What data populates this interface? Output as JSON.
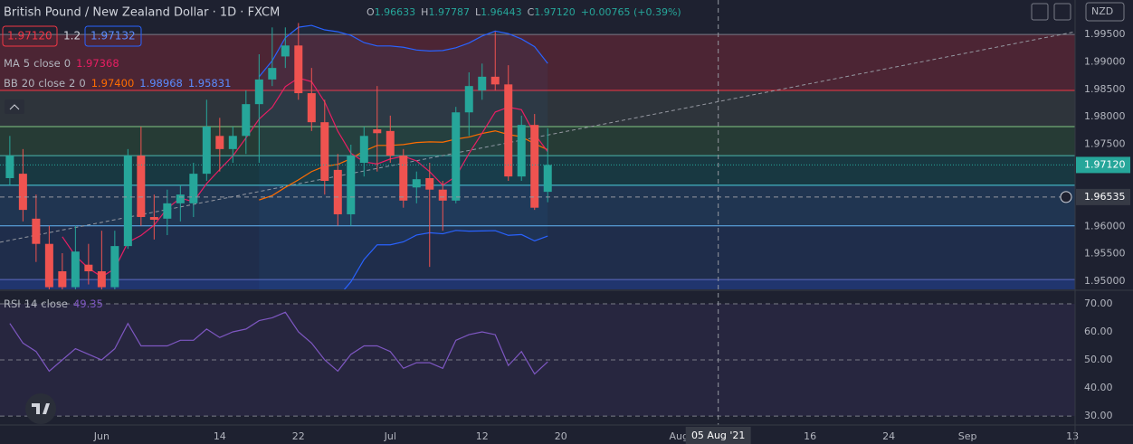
{
  "header": {
    "symbol": "British Pound / New Zealand Dollar · 1D · FXCM",
    "ohlc": [
      {
        "k": "O",
        "v": "1.96633"
      },
      {
        "k": "H",
        "v": "1.97787"
      },
      {
        "k": "L",
        "v": "1.96443"
      },
      {
        "k": "C",
        "v": "1.97120"
      }
    ],
    "change": "+0.00765 (+0.39%)"
  },
  "toolbar": {
    "sell": "1.97120",
    "spread": "1.2",
    "buy": "1.97132",
    "currency": "NZD"
  },
  "chart_data": [
    {
      "type": "candlestick",
      "up_color": "#26a69a",
      "down_color": "#ef5350",
      "open": [
        1.9688,
        1.9696,
        1.9614,
        1.9568,
        1.9518,
        1.9489,
        1.953,
        1.9518,
        1.9489,
        1.9564,
        1.9729,
        1.9617,
        1.9614,
        1.9642,
        1.9642,
        1.9696,
        1.9765,
        1.9741,
        1.9765,
        1.9823,
        1.9868,
        1.991,
        1.993,
        1.9843,
        1.979,
        1.9703,
        1.9622,
        1.9716,
        1.9777,
        1.9774,
        1.9729,
        1.9671,
        1.9688,
        1.9667,
        1.9647,
        1.9808,
        1.9848,
        1.9873,
        1.9859,
        1.9691,
        1.9785,
        1.9663
      ],
      "high": [
        1.9765,
        1.9741,
        1.9658,
        1.9601,
        1.9551,
        1.9601,
        1.9568,
        1.9592,
        1.9592,
        1.9741,
        1.9782,
        1.9658,
        1.9667,
        1.9675,
        1.9716,
        1.9831,
        1.9798,
        1.9782,
        1.9848,
        1.9914,
        1.9963,
        1.9963,
        1.9971,
        1.9889,
        1.9831,
        1.9732,
        1.9749,
        1.9782,
        1.9856,
        1.9802,
        1.9741,
        1.97,
        1.9716,
        1.9683,
        1.9818,
        1.9881,
        1.9897,
        1.9955,
        1.9894,
        1.9802,
        1.9805,
        1.9779
      ],
      "low": [
        1.9675,
        1.9609,
        1.9535,
        1.9485,
        1.9485,
        1.9485,
        1.9494,
        1.9485,
        1.9485,
        1.9559,
        1.9601,
        1.9576,
        1.9584,
        1.9609,
        1.9617,
        1.9683,
        1.97,
        1.9716,
        1.9732,
        1.9716,
        1.9856,
        1.9889,
        1.9831,
        1.9774,
        1.9658,
        1.9601,
        1.9601,
        1.9691,
        1.97,
        1.9716,
        1.9634,
        1.9642,
        1.9526,
        1.9592,
        1.9642,
        1.9765,
        1.9831,
        1.9848,
        1.9683,
        1.9683,
        1.963,
        1.9644
      ],
      "close": [
        1.9729,
        1.963,
        1.9568,
        1.9489,
        1.9489,
        1.9554,
        1.9518,
        1.9489,
        1.9564,
        1.9729,
        1.9617,
        1.9612,
        1.9642,
        1.9658,
        1.9696,
        1.9782,
        1.9741,
        1.9765,
        1.9823,
        1.9868,
        1.9889,
        1.993,
        1.9843,
        1.979,
        1.9683,
        1.9622,
        1.9729,
        1.9765,
        1.977,
        1.9729,
        1.9647,
        1.9686,
        1.9667,
        1.9647,
        1.9808,
        1.9856,
        1.9873,
        1.9859,
        1.9691,
        1.9785,
        1.9634,
        1.9712
      ],
      "xlim": [
        -0.75,
        81.2
      ],
      "xticks": [
        {
          "value": 7,
          "label": "Jun"
        },
        {
          "value": 16,
          "label": "14"
        },
        {
          "value": 22,
          "label": "22"
        },
        {
          "value": 29,
          "label": "Jul"
        },
        {
          "value": 36,
          "label": "12"
        },
        {
          "value": 42,
          "label": "20"
        },
        {
          "value": 51,
          "label": "Aug"
        },
        {
          "value": 61,
          "label": "16"
        },
        {
          "value": 67,
          "label": "24"
        },
        {
          "value": 73,
          "label": "Sep"
        },
        {
          "value": 81,
          "label": "13"
        }
      ],
      "ylim": [
        1.9485,
        2.0013
      ],
      "yticks": [
        {
          "value": 1.995,
          "label": "1.99500"
        },
        {
          "value": 1.99,
          "label": "1.99000"
        },
        {
          "value": 1.985,
          "label": "1.98500"
        },
        {
          "value": 1.98,
          "label": "1.98000"
        },
        {
          "value": 1.975,
          "label": "1.97500"
        },
        {
          "value": 1.96,
          "label": "1.96000"
        },
        {
          "value": 1.955,
          "label": "1.95500"
        },
        {
          "value": 1.95,
          "label": "1.95000"
        }
      ],
      "levels": [
        {
          "value": 1.995,
          "color": "#787b86",
          "zone": "rgba(242,54,69,0.22)"
        },
        {
          "value": 1.9848,
          "color": "#f23645",
          "zone": "rgba(120,140,110,0.18)"
        },
        {
          "value": 1.9782,
          "color": "#81c784",
          "zone": "rgba(76,175,80,0.18)"
        },
        {
          "value": 1.9729,
          "color": "#4db6ac",
          "zone": "rgba(0,150,136,0.2)"
        },
        {
          "value": 1.9675,
          "color": "#4dd0e1",
          "zone": "rgba(41,98,160,0.3)"
        },
        {
          "value": 1.9601,
          "color": "#64b5f6",
          "zone": "rgba(41,98,200,0.18)"
        },
        {
          "value": 1.9503,
          "color": "#5c6bc0",
          "zone": "rgba(41,98,255,0.3)"
        }
      ],
      "trendline": {
        "from": {
          "x": -0.75,
          "y": 1.9571
        },
        "to": {
          "x": 81.2,
          "y": 1.9955
        },
        "color": "#9598a1"
      },
      "indicators": [
        {
          "name": "MA",
          "period": 5,
          "source": "close",
          "offset": 0,
          "color": "#e91e63",
          "values": [
            "1.97368"
          ]
        },
        {
          "name": "BB",
          "period": 20,
          "source": "close",
          "mult": 2,
          "offset": 0,
          "color": "#2962ff",
          "basis_color": "#ff6d00",
          "values": [
            "1.97400",
            "1.98968",
            "1.95831"
          ]
        }
      ],
      "last_price": {
        "value": 1.9712,
        "label": "1.97120"
      },
      "crosshair": {
        "x": 54,
        "price": 1.96535,
        "date_label": "05 Aug '21"
      }
    },
    {
      "type": "line",
      "name": "RSI",
      "period": 14,
      "source": "close",
      "color": "#7e57c2",
      "value_label": "49.35",
      "values": [
        63,
        56,
        53,
        46,
        50,
        54,
        52,
        50,
        54,
        63,
        55,
        55,
        55,
        57,
        57,
        61,
        58,
        60,
        61,
        64,
        65,
        67,
        60,
        56,
        50,
        46,
        52,
        55,
        55,
        53,
        47,
        49,
        49,
        47,
        57,
        59,
        60,
        59,
        48,
        53,
        45,
        49.35
      ],
      "ylim": [
        26.8,
        74.5
      ],
      "yticks": [
        {
          "value": 70,
          "label": "70.00"
        },
        {
          "value": 60,
          "label": "60.00"
        },
        {
          "value": 50,
          "label": "50.00"
        },
        {
          "value": 40,
          "label": "40.00"
        },
        {
          "value": 30,
          "label": "30.00"
        }
      ],
      "dashed_levels": [
        70,
        50,
        30
      ]
    }
  ]
}
